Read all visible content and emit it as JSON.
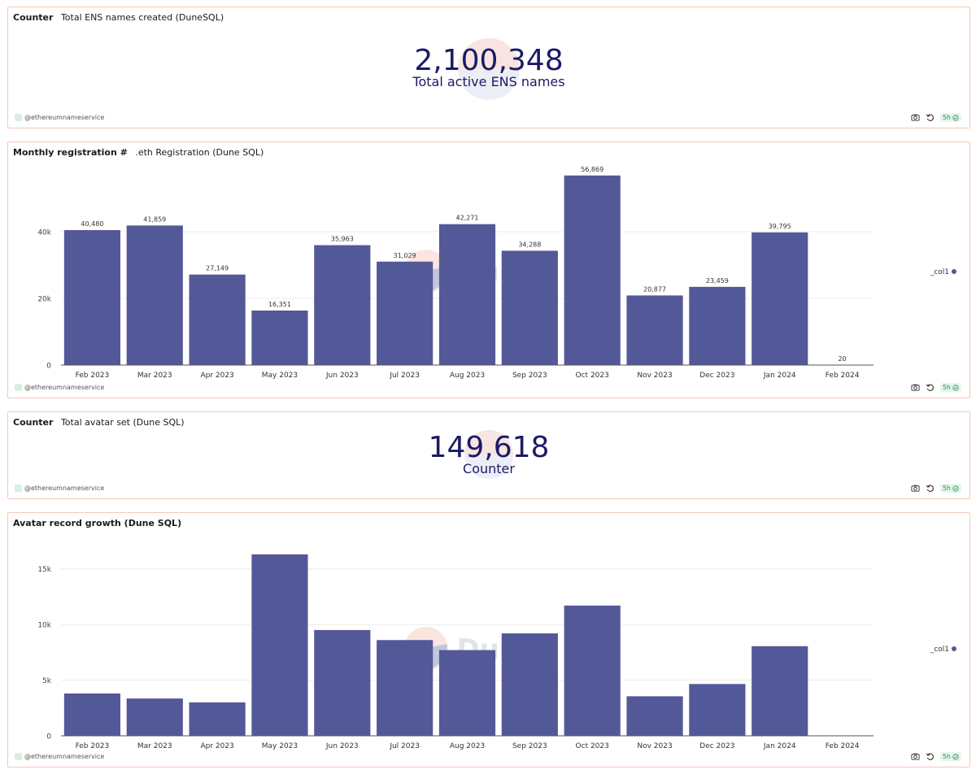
{
  "owner": "@ethereumnameservice",
  "refresh_age": "5h",
  "watermark": "Dune",
  "colors": {
    "bar": "#535898",
    "counter_text": "#1c1a66",
    "panel_border": "#f5c8b4",
    "badge_green": "#2e8b57"
  },
  "icons": [
    "camera-icon",
    "refresh-icon",
    "check-circle-icon"
  ],
  "panels": [
    {
      "kind": "Counter",
      "query_name": "Total ENS names created (DuneSQL)",
      "value": "2,100,348",
      "label": "Total active ENS names"
    },
    {
      "kind": "Monthly registration #",
      "query_name": ".eth Registration (Dune SQL)"
    },
    {
      "kind": "Counter",
      "query_name": "Total avatar set (Dune SQL)",
      "value": "149,618",
      "label": "Counter"
    },
    {
      "kind": "Avatar record growth (Dune SQL)",
      "query_name": ""
    }
  ],
  "chart_data": [
    {
      "type": "bar",
      "categories": [
        "Feb 2023",
        "Mar 2023",
        "Apr 2023",
        "May 2023",
        "Jun 2023",
        "Jul 2023",
        "Aug 2023",
        "Sep 2023",
        "Oct 2023",
        "Nov 2023",
        "Dec 2023",
        "Jan 2024",
        "Feb 2024"
      ],
      "series": [
        {
          "name": "_col1",
          "values": [
            40480,
            41859,
            27149,
            16351,
            35963,
            31029,
            42271,
            34288,
            56869,
            20877,
            23459,
            39795,
            20
          ]
        }
      ],
      "data_labels": [
        "40,480",
        "41,859",
        "27,149",
        "16,351",
        "35,963",
        "31,029",
        "42,271",
        "34,288",
        "56,869",
        "20,877",
        "23,459",
        "39,795",
        "20"
      ],
      "yticks": [
        0,
        20000,
        40000
      ],
      "ytick_labels": [
        "0",
        "20k",
        "40k"
      ],
      "ylim": [
        0,
        60000
      ],
      "legend": "right",
      "grid": true
    },
    {
      "type": "bar",
      "categories": [
        "Feb 2023",
        "Mar 2023",
        "Apr 2023",
        "May 2023",
        "Jun 2023",
        "Jul 2023",
        "Aug 2023",
        "Sep 2023",
        "Oct 2023",
        "Nov 2023",
        "Dec 2023",
        "Jan 2024",
        "Feb 2024"
      ],
      "series": [
        {
          "name": "_col1",
          "values": [
            3800,
            3350,
            3000,
            16300,
            9500,
            8600,
            7700,
            9200,
            11700,
            3550,
            4650,
            8050,
            0
          ]
        }
      ],
      "yticks": [
        0,
        5000,
        10000,
        15000
      ],
      "ytick_labels": [
        "0",
        "5k",
        "10k",
        "15k"
      ],
      "ylim": [
        0,
        16800
      ],
      "legend": "right",
      "grid": true
    }
  ]
}
